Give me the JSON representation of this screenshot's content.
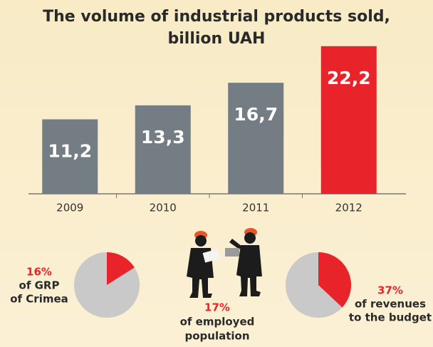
{
  "chart_data": [
    {
      "type": "bar",
      "title": [
        "The volume of industrial products sold,",
        "billion UAH"
      ],
      "categories": [
        "2009",
        "2010",
        "2011",
        "2012"
      ],
      "values": [
        11.2,
        13.3,
        16.7,
        22.2
      ],
      "value_labels": [
        "11,2",
        "13,3",
        "16,7",
        "22,2"
      ],
      "colors": [
        "#737d83",
        "#737d83",
        "#737d83",
        "#e8242a"
      ],
      "ylim": [
        0,
        24
      ]
    },
    {
      "type": "pie",
      "values": [
        16
      ],
      "value_labels": [
        "16%"
      ],
      "caption": [
        "of GRP",
        "of Crimea"
      ],
      "color": "#e8242a",
      "rest_color": "#c9c9c9"
    },
    {
      "type": "pie",
      "values": [
        37
      ],
      "value_labels": [
        "37%"
      ],
      "caption": [
        "of revenues",
        "to the budget"
      ],
      "color": "#e8242a",
      "rest_color": "#c9c9c9"
    }
  ],
  "callout": {
    "label": "17%",
    "caption": [
      "of employed",
      "population"
    ]
  }
}
